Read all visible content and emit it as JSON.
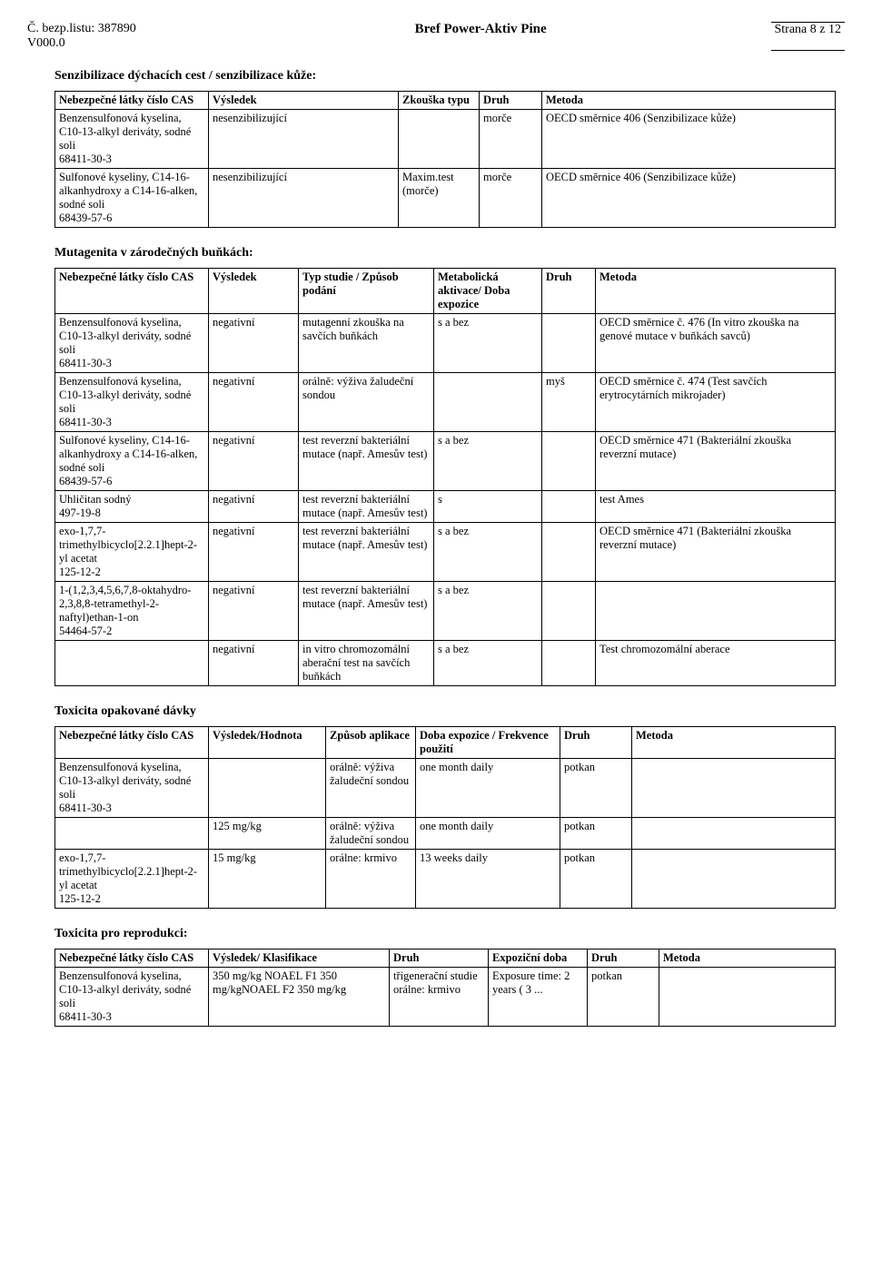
{
  "header": {
    "left": "Č. bezp.listu: 387890\nV000.0",
    "title": "Bref Power-Aktiv Pine",
    "right": "Strana 8 z 12"
  },
  "sec1": {
    "title": "Senzibilizace dýchacích cest / senzibilizace kůže:",
    "headers": [
      "Nebezpečné látky\nčíslo CAS",
      "Výsledek",
      "Zkouška typu",
      "Druh",
      "Metoda"
    ],
    "rows": [
      [
        "Benzensulfonová kyselina, C10-13-alkyl deriváty, sodné soli\n68411-30-3",
        "nesenzibilizující",
        "",
        "morče",
        "OECD směrnice 406 (Senzibilizace kůže)"
      ],
      [
        "Sulfonové kyseliny, C14-16-alkanhydroxy a C14-16-alken, sodné soli\n68439-57-6",
        "nesenzibilizující",
        "Maxim.test (morče)",
        "morče",
        "OECD směrnice 406 (Senzibilizace kůže)"
      ]
    ]
  },
  "sec2": {
    "title": "Mutagenita v zárodečných buňkách:",
    "headers": [
      "Nebezpečné látky\nčíslo CAS",
      "Výsledek",
      "Typ studie /\nZpůsob podání",
      "Metabolická aktivace/ Doba expozice",
      "Druh",
      "Metoda"
    ],
    "rows": [
      [
        "Benzensulfonová kyselina, C10-13-alkyl deriváty, sodné soli\n68411-30-3",
        "negativní",
        "mutagenní zkouška na savčích buňkách",
        "s a bez",
        "",
        "OECD směrnice č. 476 (In vitro zkouška na genové mutace v buňkách savců)"
      ],
      [
        "Benzensulfonová kyselina, C10-13-alkyl deriváty, sodné soli\n68411-30-3",
        "negativní",
        "orálně: výživa žaludeční sondou",
        "",
        "myš",
        "OECD směrnice č. 474 (Test savčích erytrocytárních mikrojader)"
      ],
      [
        "Sulfonové kyseliny, C14-16-alkanhydroxy a C14-16-alken, sodné soli\n68439-57-6",
        "negativní",
        "test reverzní bakteriální mutace (např. Amesův test)",
        "s a bez",
        "",
        "OECD směrnice 471 (Bakteriální zkouška reverzní mutace)"
      ],
      [
        "Uhličitan sodný\n497-19-8",
        "negativní",
        "test reverzní bakteriální mutace (např. Amesův test)",
        "s",
        "",
        "test Ames"
      ],
      [
        "exo-1,7,7-trimethylbicyclo[2.2.1]hept-2-yl acetat\n125-12-2",
        "negativní",
        "test reverzní bakteriální mutace (např. Amesův test)",
        "s a bez",
        "",
        "OECD směrnice 471 (Bakteriální zkouška reverzní mutace)"
      ],
      [
        "1-(1,2,3,4,5,6,7,8-oktahydro-2,3,8,8-tetramethyl-2-naftyl)ethan-1-on\n54464-57-2",
        "negativní",
        "test reverzní bakteriální mutace (např. Amesův test)",
        "s a bez",
        "",
        ""
      ],
      [
        "",
        "negativní",
        "in vitro chromozomální aberační test na savčích buňkách",
        "s a bez",
        "",
        "Test chromozomální aberace"
      ]
    ]
  },
  "sec3": {
    "title": "Toxicita opakované dávky",
    "headers": [
      "Nebezpečné látky\nčíslo CAS",
      "Výsledek/Hodnota",
      "Způsob aplikace",
      "Doba expozice / Frekvence použití",
      "Druh",
      "Metoda"
    ],
    "rows": [
      [
        "Benzensulfonová kyselina, C10-13-alkyl deriváty, sodné soli\n68411-30-3",
        "",
        "orálně: výživa žaludeční sondou",
        "one month daily",
        "potkan",
        ""
      ],
      [
        "",
        "125 mg/kg",
        "orálně: výživa žaludeční sondou",
        "one month daily",
        "potkan",
        ""
      ],
      [
        "exo-1,7,7-trimethylbicyclo[2.2.1]hept-2-yl acetat\n125-12-2",
        "15 mg/kg",
        "orálne: krmivo",
        "13 weeks daily",
        "potkan",
        ""
      ]
    ]
  },
  "sec4": {
    "title": "Toxicita pro reprodukci:",
    "headers": [
      "Nebezpečné látky\nčíslo CAS",
      "Výsledek/ Klasifikace",
      "Druh",
      "Expoziční doba",
      "Druh",
      "Metoda"
    ],
    "rows": [
      [
        "Benzensulfonová kyselina, C10-13-alkyl deriváty, sodné soli\n68411-30-3",
        "350 mg/kg NOAEL F1 350 mg/kgNOAEL F2 350 mg/kg",
        "třigenerační studie\norálne: krmivo",
        "Exposure time: 2 years ( 3 ...",
        "potkan",
        ""
      ]
    ]
  }
}
